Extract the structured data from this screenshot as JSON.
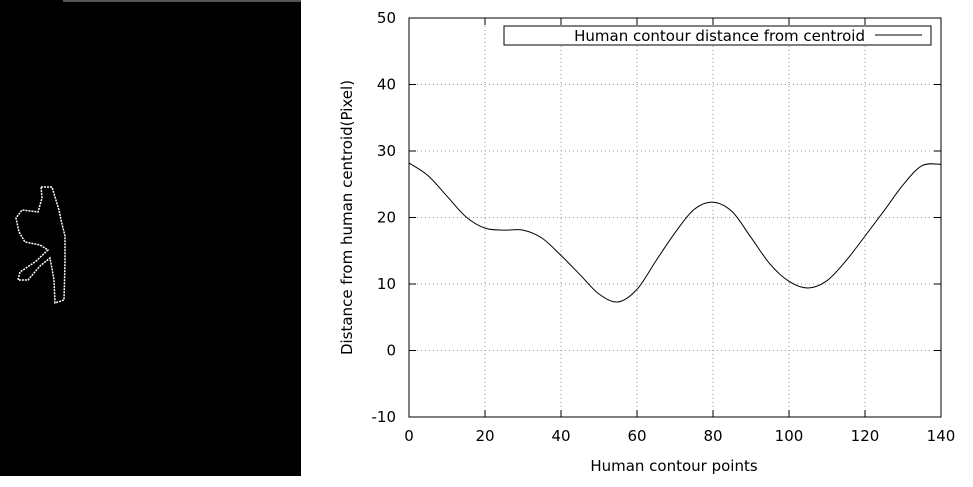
{
  "chart_data": {
    "type": "line",
    "xlabel": "Human contour points",
    "ylabel": "Distance from human centroid(Pixel)",
    "xlim": [
      0,
      140
    ],
    "ylim": [
      -10,
      50
    ],
    "x_ticks": [
      0,
      20,
      40,
      60,
      80,
      100,
      120,
      140
    ],
    "y_ticks": [
      -10,
      0,
      10,
      20,
      30,
      40,
      50
    ],
    "grid": true,
    "legend_position": "top-right",
    "series": [
      {
        "name": "Human contour distance from centroid",
        "color": "#000000",
        "points": [
          [
            0,
            28.2
          ],
          [
            5,
            26.3
          ],
          [
            10,
            23.2
          ],
          [
            15,
            20.1
          ],
          [
            20,
            18.4
          ],
          [
            25,
            18.1
          ],
          [
            30,
            18.1
          ],
          [
            35,
            16.9
          ],
          [
            40,
            14.3
          ],
          [
            45,
            11.4
          ],
          [
            50,
            8.5
          ],
          [
            55,
            7.3
          ],
          [
            60,
            9.2
          ],
          [
            65,
            13.5
          ],
          [
            70,
            17.7
          ],
          [
            75,
            21.2
          ],
          [
            80,
            22.3
          ],
          [
            85,
            20.9
          ],
          [
            90,
            17.0
          ],
          [
            95,
            13.0
          ],
          [
            100,
            10.4
          ],
          [
            105,
            9.4
          ],
          [
            110,
            10.5
          ],
          [
            115,
            13.5
          ],
          [
            120,
            17.2
          ],
          [
            125,
            21.0
          ],
          [
            130,
            24.9
          ],
          [
            135,
            27.8
          ],
          [
            140,
            28.0
          ]
        ]
      }
    ]
  }
}
